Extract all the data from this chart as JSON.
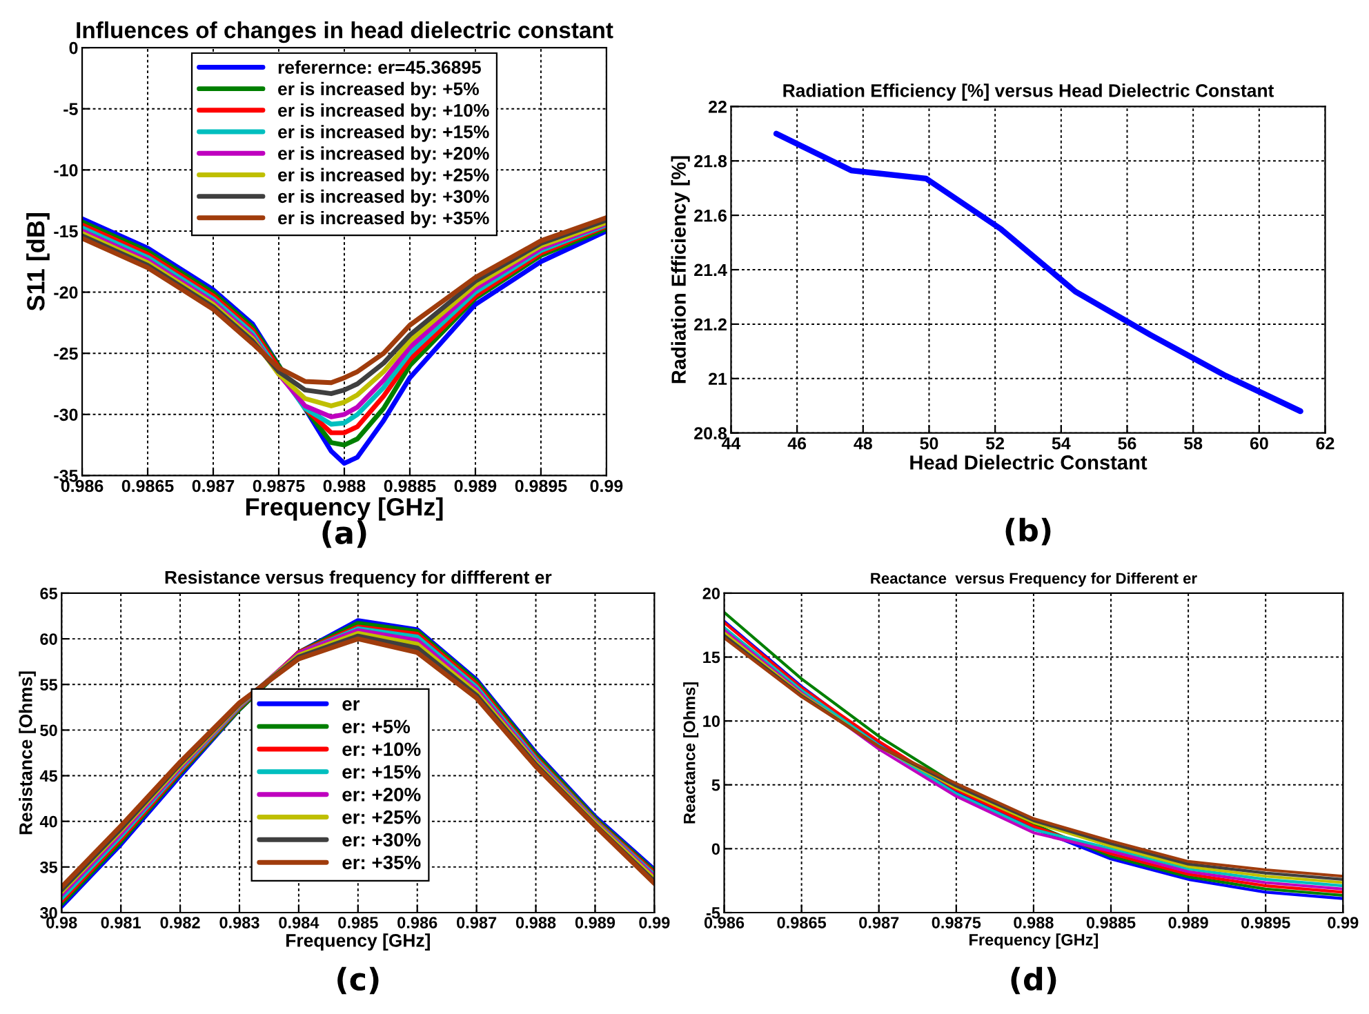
{
  "chart_data": [
    {
      "type": "line",
      "title": "Influences of changes in head dielectric constant",
      "xlabel": "Frequency [GHz]",
      "ylabel": "S11 [dB]",
      "annotations": [
        "(a)"
      ],
      "x": [
        0.986,
        0.9865,
        0.987,
        0.9873,
        0.9875,
        0.9877,
        0.9879,
        0.988,
        0.9881,
        0.9883,
        0.9885,
        0.989,
        0.9895,
        0.99
      ],
      "xlim": [
        0.986,
        0.99
      ],
      "xticks": [
        0.986,
        0.9865,
        0.987,
        0.9875,
        0.988,
        0.9885,
        0.989,
        0.9895,
        0.99
      ],
      "ylim": [
        -35,
        0
      ],
      "yticks": [
        -35,
        -30,
        -25,
        -20,
        -15,
        -10,
        -5,
        0
      ],
      "grid": true,
      "legend": "top",
      "series": [
        {
          "name": "referernce: er=45.36895",
          "color": "#0000ff",
          "values": [
            -14,
            -16.4,
            -19.8,
            -22.6,
            -26,
            -29.5,
            -33,
            -34,
            -33.5,
            -30.5,
            -27,
            -21,
            -17.5,
            -15
          ]
        },
        {
          "name": "er is increased by: +5%",
          "color": "#007f00",
          "values": [
            -14.25,
            -16.65,
            -20.05,
            -22.85,
            -26,
            -29.5,
            -32.3,
            -32.5,
            -32,
            -29.5,
            -26,
            -20.5,
            -17,
            -14.8
          ]
        },
        {
          "name": "er is increased by: +10%",
          "color": "#ff0000",
          "values": [
            -14.5,
            -16.9,
            -20.3,
            -23.1,
            -26.2,
            -29.5,
            -31.5,
            -31.5,
            -31,
            -28.5,
            -25.5,
            -20.3,
            -16.8,
            -14.6
          ]
        },
        {
          "name": "er is increased by: +15%",
          "color": "#00bfbf",
          "values": [
            -14.75,
            -17.15,
            -20.55,
            -23.35,
            -26.5,
            -29.5,
            -30.8,
            -30.7,
            -30,
            -27.8,
            -25,
            -20,
            -16.6,
            -14.5
          ]
        },
        {
          "name": "er is increased by: +20%",
          "color": "#bf00bf",
          "values": [
            -15,
            -17.4,
            -20.8,
            -23.6,
            -26.7,
            -29.3,
            -30.2,
            -30,
            -29.4,
            -27.2,
            -24.5,
            -19.7,
            -16.4,
            -14.4
          ]
        },
        {
          "name": "er is increased by: +25%",
          "color": "#bfbf00",
          "values": [
            -15.2,
            -17.6,
            -21,
            -23.8,
            -26.7,
            -28.7,
            -29.3,
            -29,
            -28.4,
            -26.5,
            -24,
            -19.4,
            -16.2,
            -14.3
          ]
        },
        {
          "name": "er is increased by: +30%",
          "color": "#3f3f3f",
          "values": [
            -15.4,
            -17.8,
            -21.2,
            -24,
            -26.5,
            -28,
            -28.3,
            -28,
            -27.5,
            -25.8,
            -23.5,
            -19.1,
            -16,
            -14.1
          ]
        },
        {
          "name": "er is increased by: +35%",
          "color": "#a03c0c",
          "values": [
            -15.6,
            -18,
            -21.4,
            -24.2,
            -26.2,
            -27.3,
            -27.4,
            -27,
            -26.5,
            -25,
            -22.7,
            -18.8,
            -15.8,
            -13.9
          ]
        }
      ]
    },
    {
      "type": "line",
      "title": "Radiation Efficiency [%] versus Head Dielectric Constant",
      "xlabel": "Head Dielectric Constant",
      "ylabel": "Radiation Efficiency [%]",
      "annotations": [
        "(b)"
      ],
      "x": [
        45.37,
        47.64,
        49.91,
        52.17,
        54.43,
        56.71,
        58.99,
        61.25
      ],
      "xlim": [
        44,
        62
      ],
      "xticks": [
        44,
        46,
        48,
        50,
        52,
        54,
        56,
        58,
        60,
        62
      ],
      "ylim": [
        20.8,
        22
      ],
      "yticks": [
        20.8,
        21,
        21.2,
        21.4,
        21.6,
        21.8,
        22
      ],
      "grid": true,
      "series": [
        {
          "color": "#0000ff",
          "values": [
            21.9,
            21.765,
            21.735,
            21.55,
            21.32,
            21.16,
            21.01,
            20.88
          ]
        }
      ]
    },
    {
      "type": "line",
      "title": "Resistance versus frequency for diffferent er",
      "xlabel": "Frequency [GHz]",
      "ylabel": "Resistance [Ohms]",
      "annotations": [
        "(c)"
      ],
      "x": [
        0.98,
        0.981,
        0.982,
        0.983,
        0.984,
        0.985,
        0.986,
        0.987,
        0.988,
        0.989,
        0.99
      ],
      "xlim": [
        0.98,
        0.99
      ],
      "xticks": [
        0.98,
        0.981,
        0.982,
        0.983,
        0.984,
        0.985,
        0.986,
        0.987,
        0.988,
        0.989,
        0.99
      ],
      "ylim": [
        30,
        65
      ],
      "yticks": [
        30,
        35,
        40,
        45,
        50,
        55,
        60,
        65
      ],
      "grid": true,
      "legend": "center",
      "series": [
        {
          "name": "er",
          "color": "#0000ff",
          "values": [
            30.7,
            37.5,
            45,
            52.3,
            58.5,
            62,
            61,
            55.5,
            47.5,
            40.5,
            34.7
          ]
        },
        {
          "name": "er: +5%",
          "color": "#007f00",
          "values": [
            31,
            37.8,
            45.3,
            52.3,
            58.5,
            61.7,
            60.8,
            55.3,
            47.3,
            40.3,
            34.5
          ]
        },
        {
          "name": "er: +10%",
          "color": "#ff0000",
          "values": [
            31.3,
            38.1,
            45.5,
            52.5,
            58.5,
            61.3,
            60.5,
            55,
            47,
            40.1,
            34.3
          ]
        },
        {
          "name": "er: +15%",
          "color": "#00bfbf",
          "values": [
            31.6,
            38.4,
            45.7,
            52.6,
            58.4,
            61.1,
            60.2,
            54.7,
            46.8,
            40,
            34.1
          ]
        },
        {
          "name": "er: +20%",
          "color": "#bf00bf",
          "values": [
            32,
            38.7,
            45.9,
            52.7,
            58.4,
            60.9,
            59.8,
            54.4,
            46.6,
            39.9,
            33.9
          ]
        },
        {
          "name": "er: +25%",
          "color": "#bfbf00",
          "values": [
            32.3,
            39,
            46.1,
            52.8,
            58.2,
            60.6,
            59.4,
            54.1,
            46.4,
            39.8,
            33.7
          ]
        },
        {
          "name": "er: +30%",
          "color": "#3f3f3f",
          "values": [
            32.5,
            39.2,
            46.3,
            52.9,
            58,
            60.3,
            59,
            53.8,
            46.2,
            39.6,
            33.4
          ]
        },
        {
          "name": "er: +35%",
          "color": "#a03c0c",
          "values": [
            32.8,
            39.5,
            46.5,
            53,
            57.8,
            60,
            58.5,
            53.5,
            46,
            39.5,
            33.2
          ]
        }
      ]
    },
    {
      "type": "line",
      "title": "Reactance  versus Frequency for Different er",
      "xlabel": "Frequency [GHz]",
      "ylabel": "Reactance [Ohms]",
      "annotations": [
        "(d)"
      ],
      "x": [
        0.986,
        0.9865,
        0.987,
        0.9875,
        0.988,
        0.9885,
        0.989,
        0.9895,
        0.99
      ],
      "xlim": [
        0.986,
        0.99
      ],
      "xticks": [
        0.986,
        0.9865,
        0.987,
        0.9875,
        0.988,
        0.9885,
        0.989,
        0.9895,
        0.99
      ],
      "ylim": [
        -5,
        20
      ],
      "yticks": [
        -5,
        0,
        5,
        10,
        15,
        20
      ],
      "grid": true,
      "series": [
        {
          "color": "#0000ff",
          "values": [
            17.8,
            12.7,
            8.2,
            4.45,
            1.6,
            -0.8,
            -2.4,
            -3.4,
            -3.9
          ]
        },
        {
          "color": "#007f00",
          "values": [
            18.5,
            13.3,
            8.8,
            5,
            1.9,
            -0.6,
            -2.2,
            -3.15,
            -3.65
          ]
        },
        {
          "color": "#ff0000",
          "values": [
            17.7,
            12.6,
            8.4,
            4.6,
            1.75,
            -0.4,
            -2,
            -2.9,
            -3.4
          ]
        },
        {
          "color": "#00bfbf",
          "values": [
            17.3,
            12.4,
            8.1,
            4.3,
            1.5,
            0,
            -1.6,
            -2.4,
            -2.9
          ]
        },
        {
          "color": "#bf00bf",
          "values": [
            17.1,
            12.2,
            7.8,
            4.1,
            1.25,
            -0.2,
            -1.8,
            -2.65,
            -3.15
          ]
        },
        {
          "color": "#bfbf00",
          "values": [
            16.9,
            12.1,
            8,
            4.75,
            2.05,
            0.2,
            -1.4,
            -2.15,
            -2.65
          ]
        },
        {
          "color": "#3f3f3f",
          "values": [
            16.7,
            12,
            8,
            4.9,
            2.2,
            0.4,
            -1.2,
            -1.9,
            -2.4
          ]
        },
        {
          "color": "#a03c0c",
          "values": [
            16.5,
            11.9,
            8,
            5.1,
            2.35,
            0.6,
            -1,
            -1.65,
            -2.15
          ]
        }
      ]
    }
  ]
}
